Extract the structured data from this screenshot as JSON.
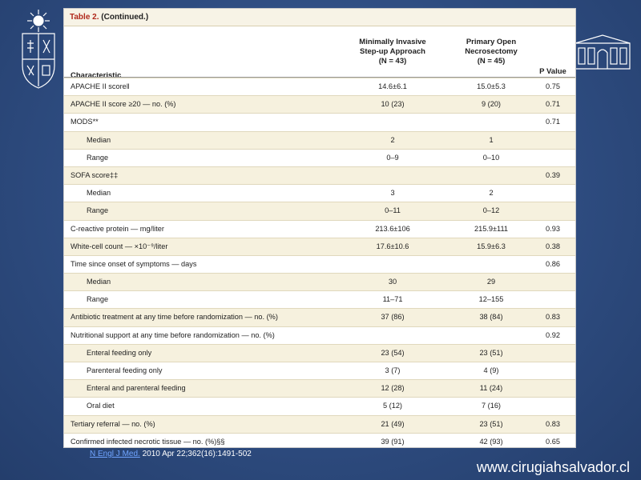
{
  "table": {
    "caption_num": "Table 2.",
    "caption_text": "(Continued.)",
    "headers": {
      "characteristic": "Characteristic",
      "group1": [
        "Minimally Invasive",
        "Step-up Approach",
        "(N = 43)"
      ],
      "group2": [
        "Primary Open",
        "Necrosectomy",
        "(N = 45)"
      ],
      "p_value": "P Value"
    },
    "rows": [
      {
        "label": "APACHE II score‖",
        "g1": "14.6±6.1",
        "g2": "15.0±5.3",
        "p": "0.75",
        "sub": false
      },
      {
        "label": "APACHE II score ≥20 — no. (%)",
        "g1": "10 (23)",
        "g2": "9 (20)",
        "p": "0.71",
        "sub": false
      },
      {
        "label": "MODS**",
        "g1": "",
        "g2": "",
        "p": "0.71",
        "sub": false
      },
      {
        "label": "Median",
        "g1": "2",
        "g2": "1",
        "p": "",
        "sub": true
      },
      {
        "label": "Range",
        "g1": "0–9",
        "g2": "0–10",
        "p": "",
        "sub": true
      },
      {
        "label": "SOFA score‡‡",
        "g1": "",
        "g2": "",
        "p": "0.39",
        "sub": false
      },
      {
        "label": "Median",
        "g1": "3",
        "g2": "2",
        "p": "",
        "sub": true
      },
      {
        "label": "Range",
        "g1": "0–11",
        "g2": "0–12",
        "p": "",
        "sub": true
      },
      {
        "label": "C-reactive protein — mg/liter",
        "g1": "213.6±106",
        "g2": "215.9±111",
        "p": "0.93",
        "sub": false
      },
      {
        "label": "White-cell count — ×10⁻⁹/liter",
        "g1": "17.6±10.6",
        "g2": "15.9±6.3",
        "p": "0.38",
        "sub": false
      },
      {
        "label": "Time since onset of symptoms — days",
        "g1": "",
        "g2": "",
        "p": "0.86",
        "sub": false
      },
      {
        "label": "Median",
        "g1": "30",
        "g2": "29",
        "p": "",
        "sub": true
      },
      {
        "label": "Range",
        "g1": "11–71",
        "g2": "12–155",
        "p": "",
        "sub": true
      },
      {
        "label": "Antibiotic treatment at any time before randomization — no. (%)",
        "g1": "37 (86)",
        "g2": "38 (84)",
        "p": "0.83",
        "sub": false
      },
      {
        "label": "Nutritional support at any time before randomization — no. (%)",
        "g1": "",
        "g2": "",
        "p": "0.92",
        "sub": false
      },
      {
        "label": "Enteral feeding only",
        "g1": "23 (54)",
        "g2": "23 (51)",
        "p": "",
        "sub": true
      },
      {
        "label": "Parenteral feeding only",
        "g1": "3 (7)",
        "g2": "4 (9)",
        "p": "",
        "sub": true
      },
      {
        "label": "Enteral and parenteral feeding",
        "g1": "12 (28)",
        "g2": "11 (24)",
        "p": "",
        "sub": true
      },
      {
        "label": "Oral diet",
        "g1": "5 (12)",
        "g2": "7 (16)",
        "p": "",
        "sub": true
      },
      {
        "label": "Tertiary referral — no. (%)",
        "g1": "21 (49)",
        "g2": "23 (51)",
        "p": "0.83",
        "sub": false
      },
      {
        "label": "Confirmed infected necrotic tissue — no. (%)§§",
        "g1": "39 (91)",
        "g2": "42 (93)",
        "p": "0.65",
        "sub": false
      }
    ]
  },
  "citation": {
    "journal": "N Engl J Med.",
    "detail": " 2010 Apr 22;362(16):1491-502"
  },
  "site_url": "www.cirugiahsalvador.cl",
  "colors": {
    "background": "#2e4c80",
    "caption_accent": "#b0281b",
    "row_shade": "#f6f1de",
    "link": "#6fa4ff"
  },
  "icons": {
    "left_logo": "university-crest-icon",
    "right_logo": "hospital-building-icon"
  }
}
